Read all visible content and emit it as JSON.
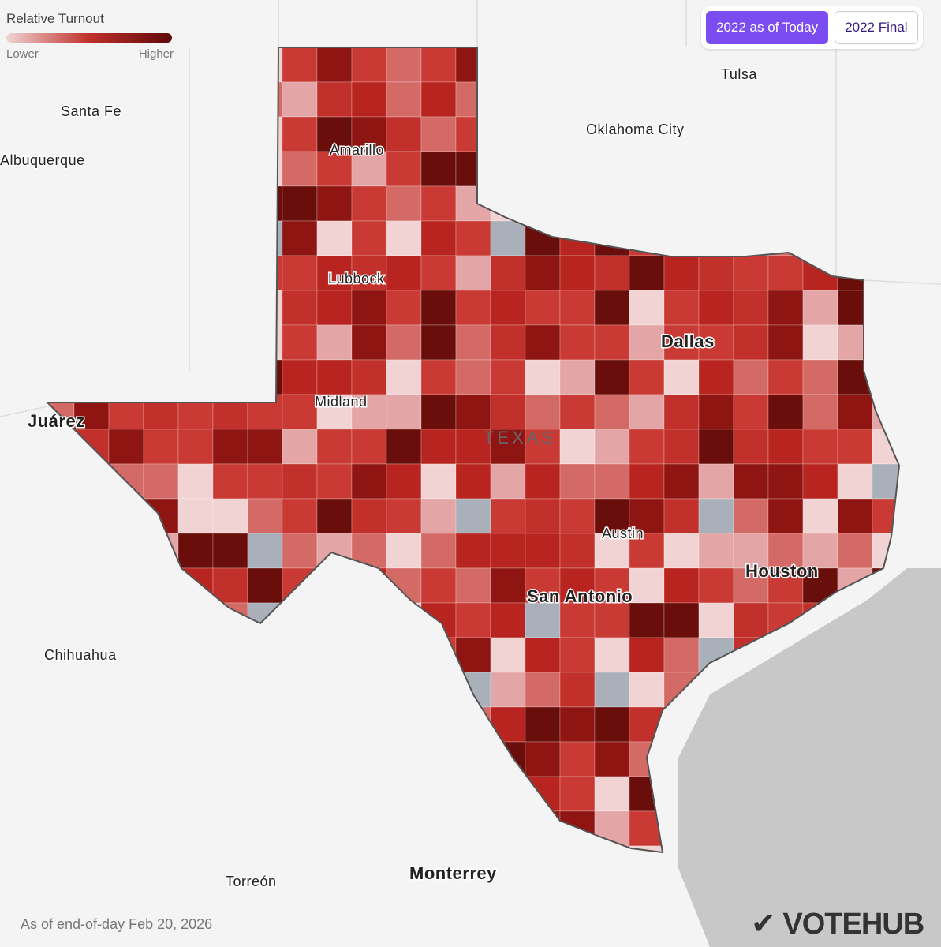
{
  "legend": {
    "title": "Relative Turnout",
    "low": "Lower",
    "high": "Higher"
  },
  "buttons": [
    "2022 as of Today",
    "2022 Final"
  ],
  "labels": {
    "tulsa": "Tulsa",
    "santa_fe": "Santa Fe",
    "oklahoma_city": "Oklahoma City",
    "albuquerque": "Albuquerque",
    "amarillo": "Amarillo",
    "lubbock": "Lubbock",
    "dallas": "Dallas",
    "midland": "Midland",
    "juarez": "Juárez",
    "texas": "TEXAS",
    "austin": "Austin",
    "san_antonio": "San Antonio",
    "houston": "Houston",
    "chihuahua": "Chihuahua",
    "torreon": "Torreón",
    "monterrey": "Monterrey"
  },
  "footer": "As of end-of-day Feb 20, 2026",
  "logo": "VOTEHUB"
}
